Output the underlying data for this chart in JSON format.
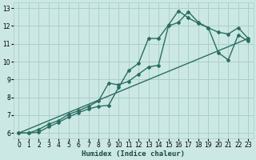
{
  "xlabel": "Humidex (Indice chaleur)",
  "bg_color": "#cce8e4",
  "grid_color": "#aacfca",
  "line_color": "#2a6e62",
  "xlim": [
    -0.5,
    23.5
  ],
  "ylim": [
    5.7,
    13.3
  ],
  "xticks": [
    0,
    1,
    2,
    3,
    4,
    5,
    6,
    7,
    8,
    9,
    10,
    11,
    12,
    13,
    14,
    15,
    16,
    17,
    18,
    19,
    20,
    21,
    22,
    23
  ],
  "yticks": [
    6,
    7,
    8,
    9,
    10,
    11,
    12,
    13
  ],
  "line1_x": [
    0,
    1,
    2,
    3,
    4,
    5,
    6,
    7,
    8,
    9,
    10,
    11,
    12,
    13,
    14,
    15,
    16,
    17,
    18,
    19,
    20,
    21,
    22,
    23
  ],
  "line1_y": [
    6.0,
    6.0,
    6.2,
    6.5,
    6.7,
    7.05,
    7.25,
    7.5,
    7.8,
    8.8,
    8.7,
    8.9,
    9.3,
    9.7,
    9.8,
    12.0,
    12.2,
    12.8,
    12.2,
    11.9,
    11.65,
    11.55,
    11.9,
    11.3
  ],
  "line2_x": [
    0,
    1,
    2,
    3,
    4,
    5,
    6,
    7,
    8,
    9,
    10,
    11,
    12,
    13,
    14,
    15,
    16,
    17,
    18,
    19,
    20,
    21,
    22,
    23
  ],
  "line2_y": [
    6.0,
    6.0,
    6.05,
    6.35,
    6.6,
    6.9,
    7.15,
    7.35,
    7.5,
    7.55,
    8.55,
    9.5,
    9.9,
    11.3,
    11.3,
    12.05,
    12.85,
    12.45,
    12.15,
    11.9,
    10.5,
    10.1,
    11.5,
    11.15
  ],
  "line3_x": [
    0,
    23
  ],
  "line3_y": [
    6.0,
    11.3
  ]
}
